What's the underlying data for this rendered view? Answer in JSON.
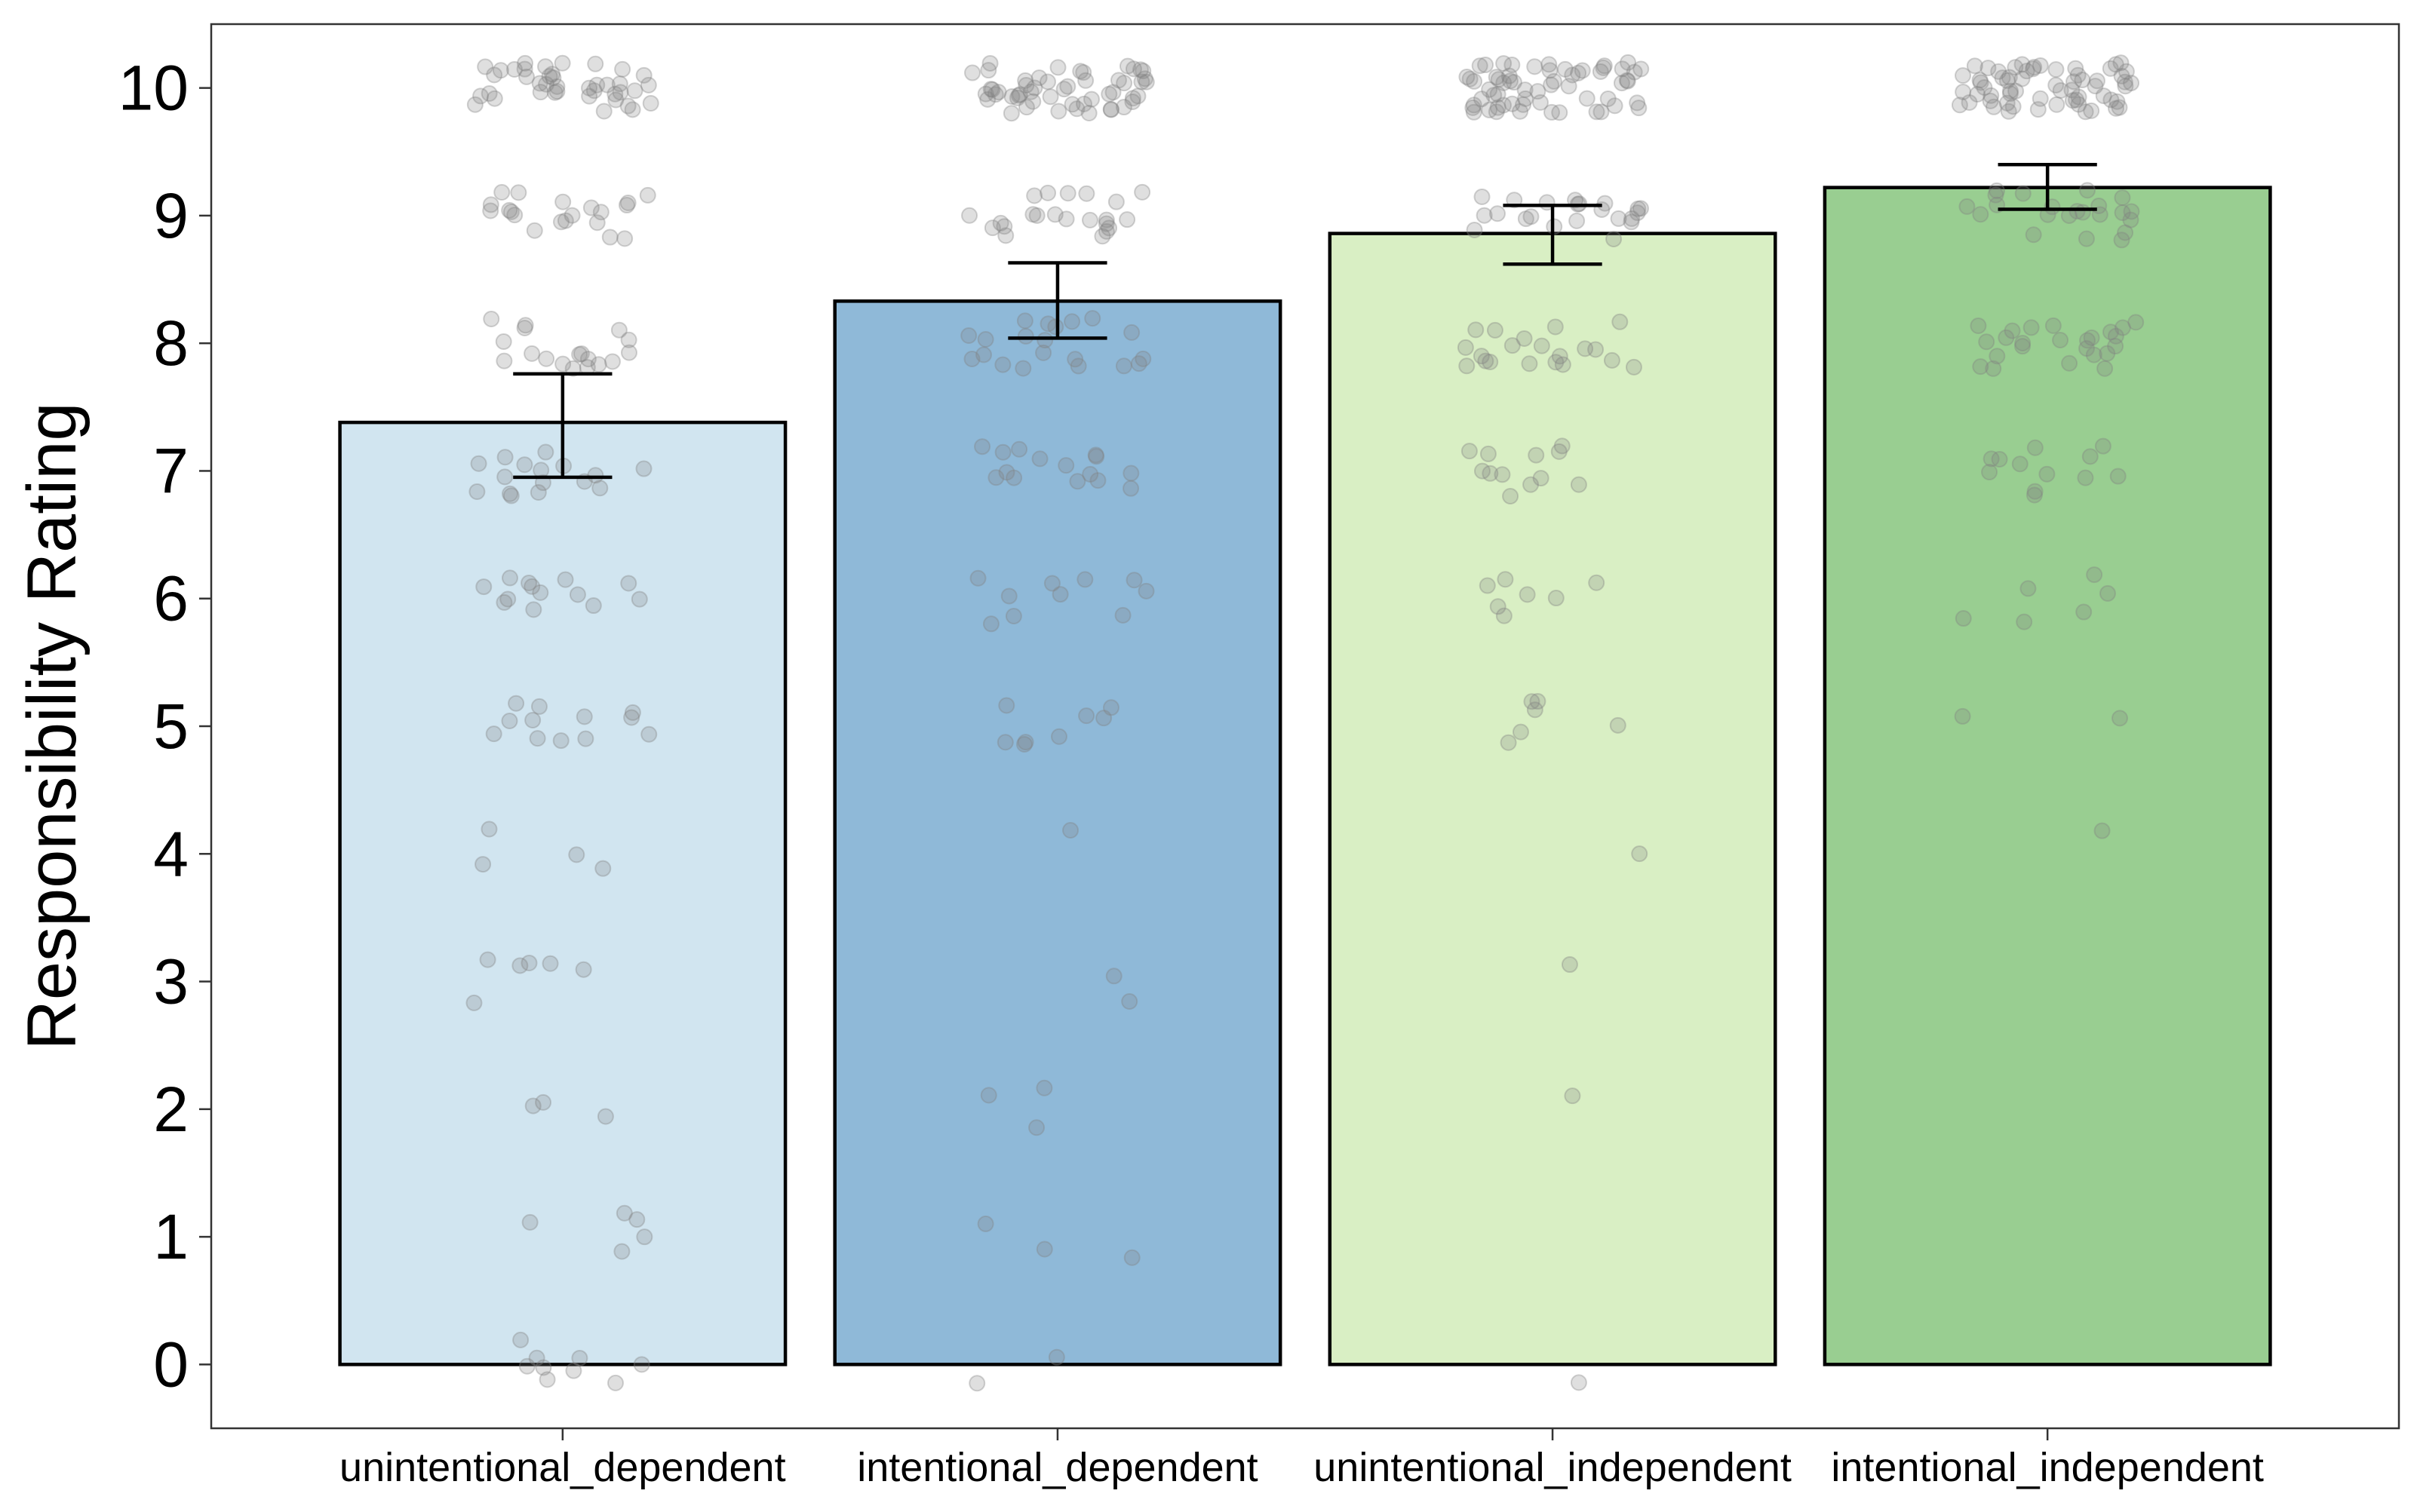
{
  "chart_data": {
    "type": "bar",
    "title": "",
    "xlabel": "",
    "ylabel": "Responsibility Rating",
    "categories": [
      "unintentional_dependent",
      "intentional_dependent",
      "unintentional_independent",
      "intentional_independent"
    ],
    "values": [
      7.38,
      8.33,
      8.86,
      9.22
    ],
    "error_bars": [
      {
        "low": 6.95,
        "high": 7.76
      },
      {
        "low": 8.04,
        "high": 8.63
      },
      {
        "low": 8.62,
        "high": 9.08
      },
      {
        "low": 9.05,
        "high": 9.4
      }
    ],
    "colors": [
      "#d1e5f0",
      "#8fb9d8",
      "#d9efc4",
      "#99ce91"
    ],
    "ylim": [
      -0.5,
      10.5
    ],
    "yticks": [
      "0",
      "1",
      "2",
      "3",
      "4",
      "5",
      "6",
      "7",
      "8",
      "9",
      "10"
    ],
    "grid": false,
    "legend": "none",
    "points": {
      "color": "#808080",
      "opacity": 0.25,
      "counts": [
        {
          "rating": 0,
          "n": [
            9,
            2,
            1,
            0
          ]
        },
        {
          "rating": 1,
          "n": [
            5,
            3,
            0,
            0
          ]
        },
        {
          "rating": 2,
          "n": [
            3,
            3,
            1,
            0
          ]
        },
        {
          "rating": 3,
          "n": [
            6,
            2,
            1,
            0
          ]
        },
        {
          "rating": 4,
          "n": [
            4,
            1,
            1,
            1
          ]
        },
        {
          "rating": 5,
          "n": [
            12,
            8,
            6,
            2
          ]
        },
        {
          "rating": 6,
          "n": [
            13,
            10,
            7,
            6
          ]
        },
        {
          "rating": 7,
          "n": [
            16,
            15,
            12,
            12
          ]
        },
        {
          "rating": 8,
          "n": [
            18,
            20,
            20,
            24
          ]
        },
        {
          "rating": 9,
          "n": [
            20,
            22,
            22,
            22
          ]
        },
        {
          "rating": 10,
          "n": [
            40,
            52,
            60,
            62
          ]
        }
      ]
    }
  }
}
